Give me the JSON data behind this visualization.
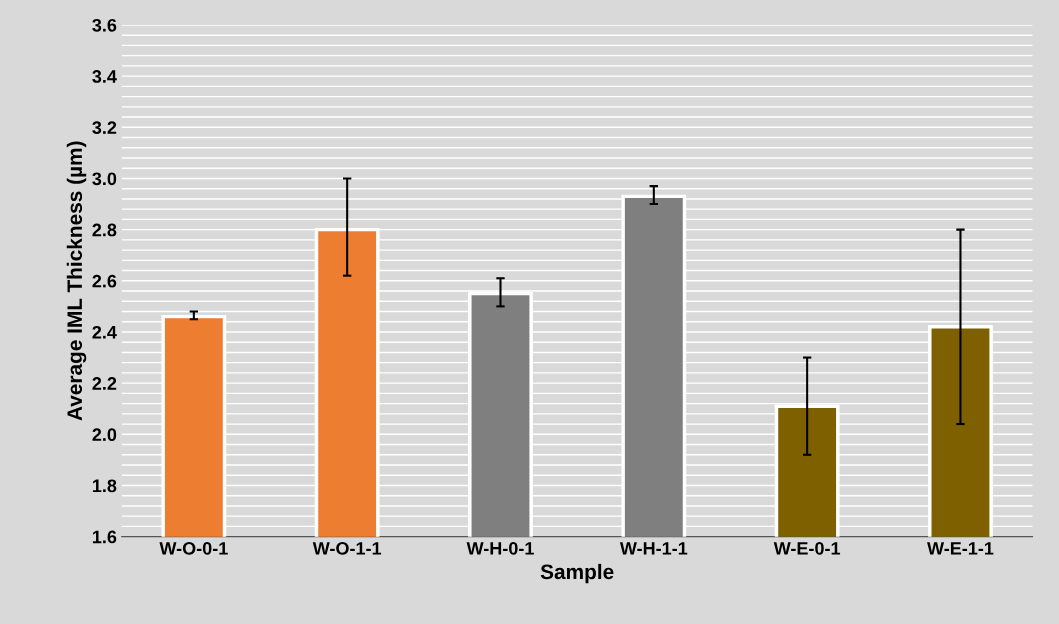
{
  "chart_data": {
    "type": "bar",
    "xlabel": "Sample",
    "ylabel": "Average IML Thickness (µm)",
    "categories": [
      "W-O-0-1",
      "W-O-1-1",
      "W-H-0-1",
      "W-H-1-1",
      "W-E-0-1",
      "W-E-1-1"
    ],
    "values": [
      2.46,
      2.8,
      2.55,
      2.93,
      2.11,
      2.42
    ],
    "colors": [
      "#ed7d31",
      "#ed7d31",
      "#7f7f7f",
      "#7f7f7f",
      "#7f6000",
      "#7f6000"
    ],
    "errors": [
      [
        2.45,
        2.48
      ],
      [
        2.62,
        3.0
      ],
      [
        2.5,
        2.61
      ],
      [
        2.9,
        2.97
      ],
      [
        1.92,
        2.3
      ],
      [
        2.04,
        2.8
      ]
    ],
    "ylim": [
      1.6,
      3.6
    ],
    "yticks": [
      {
        "value": 1.6,
        "label": "1.6"
      },
      {
        "value": 1.8,
        "label": "1.8"
      },
      {
        "value": 2.0,
        "label": "2.0"
      },
      {
        "value": 2.2,
        "label": "2.2"
      },
      {
        "value": 2.4,
        "label": "2.4"
      },
      {
        "value": 2.6,
        "label": "2.6"
      },
      {
        "value": 2.8,
        "label": "2.8"
      },
      {
        "value": 3.0,
        "label": "3.0"
      },
      {
        "value": 3.2,
        "label": "3.2"
      },
      {
        "value": 3.4,
        "label": "3.4"
      },
      {
        "value": 3.6,
        "label": "3.6"
      }
    ],
    "grid": "y"
  }
}
